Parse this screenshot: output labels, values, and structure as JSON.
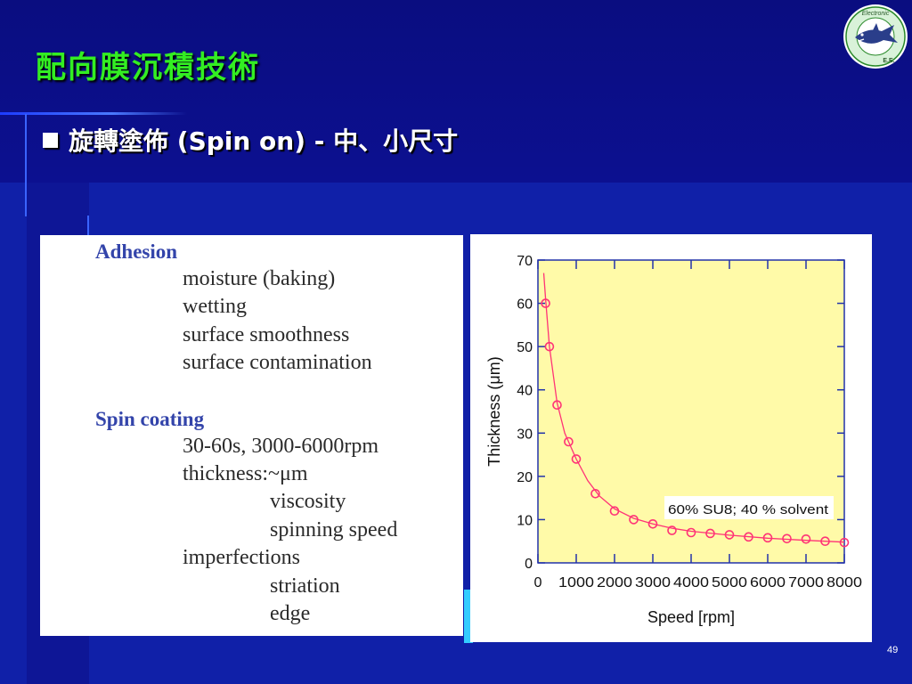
{
  "slide": {
    "title": "配向膜沉積技術",
    "bullet_text": "旋轉塗佈",
    "bullet_paren": "(Spin on)",
    "bullet_suffix": "- 中、小尺寸",
    "page_number": "49"
  },
  "logo": {
    "top_text": "Electronic",
    "bottom_text": "E.E."
  },
  "text_panel": {
    "adhesion_heading": "Adhesion",
    "adhesion_items": [
      "moisture (baking)",
      "wetting",
      "surface smoothness",
      "surface contamination"
    ],
    "spin_heading": "Spin coating",
    "spin_line1": "30-60s, 3000-6000rpm",
    "thickness_label": "thickness:~μm",
    "thickness_items": [
      "viscosity",
      "spinning speed"
    ],
    "imperfections_label": "imperfections",
    "imperfections_items": [
      "striation",
      "edge"
    ]
  },
  "chart_data": {
    "type": "scatter",
    "xlabel": "Speed [rpm]",
    "ylabel": "Thickness (μm)",
    "xlim": [
      0,
      8000
    ],
    "ylim": [
      0,
      70
    ],
    "xticks": [
      0,
      1000,
      2000,
      3000,
      4000,
      5000,
      6000,
      7000,
      8000
    ],
    "yticks": [
      0,
      10,
      20,
      30,
      40,
      50,
      60,
      70
    ],
    "annotation": "60% SU8; 40 % solvent",
    "plot_bg": "#fffaa8",
    "mark_color": "#ff3377",
    "points": [
      {
        "x": 200,
        "y": 60
      },
      {
        "x": 300,
        "y": 50
      },
      {
        "x": 500,
        "y": 36.5
      },
      {
        "x": 800,
        "y": 28
      },
      {
        "x": 1000,
        "y": 24
      },
      {
        "x": 1500,
        "y": 16
      },
      {
        "x": 2000,
        "y": 12
      },
      {
        "x": 2500,
        "y": 10
      },
      {
        "x": 3000,
        "y": 9
      },
      {
        "x": 3500,
        "y": 7.5
      },
      {
        "x": 4000,
        "y": 7
      },
      {
        "x": 4500,
        "y": 6.8
      },
      {
        "x": 5000,
        "y": 6.5
      },
      {
        "x": 5500,
        "y": 6
      },
      {
        "x": 6000,
        "y": 5.8
      },
      {
        "x": 6500,
        "y": 5.6
      },
      {
        "x": 7000,
        "y": 5.5
      },
      {
        "x": 7500,
        "y": 5
      },
      {
        "x": 8000,
        "y": 4.7
      }
    ],
    "fit": [
      [
        150,
        67
      ],
      [
        200,
        61
      ],
      [
        300,
        50
      ],
      [
        500,
        37
      ],
      [
        700,
        30
      ],
      [
        1000,
        24
      ],
      [
        1300,
        19
      ],
      [
        1600,
        15.5
      ],
      [
        2000,
        12.5
      ],
      [
        2500,
        10.3
      ],
      [
        3000,
        9
      ],
      [
        3500,
        8
      ],
      [
        4000,
        7.3
      ],
      [
        5000,
        6.4
      ],
      [
        6000,
        5.7
      ],
      [
        7000,
        5.2
      ],
      [
        8000,
        4.8
      ]
    ]
  }
}
